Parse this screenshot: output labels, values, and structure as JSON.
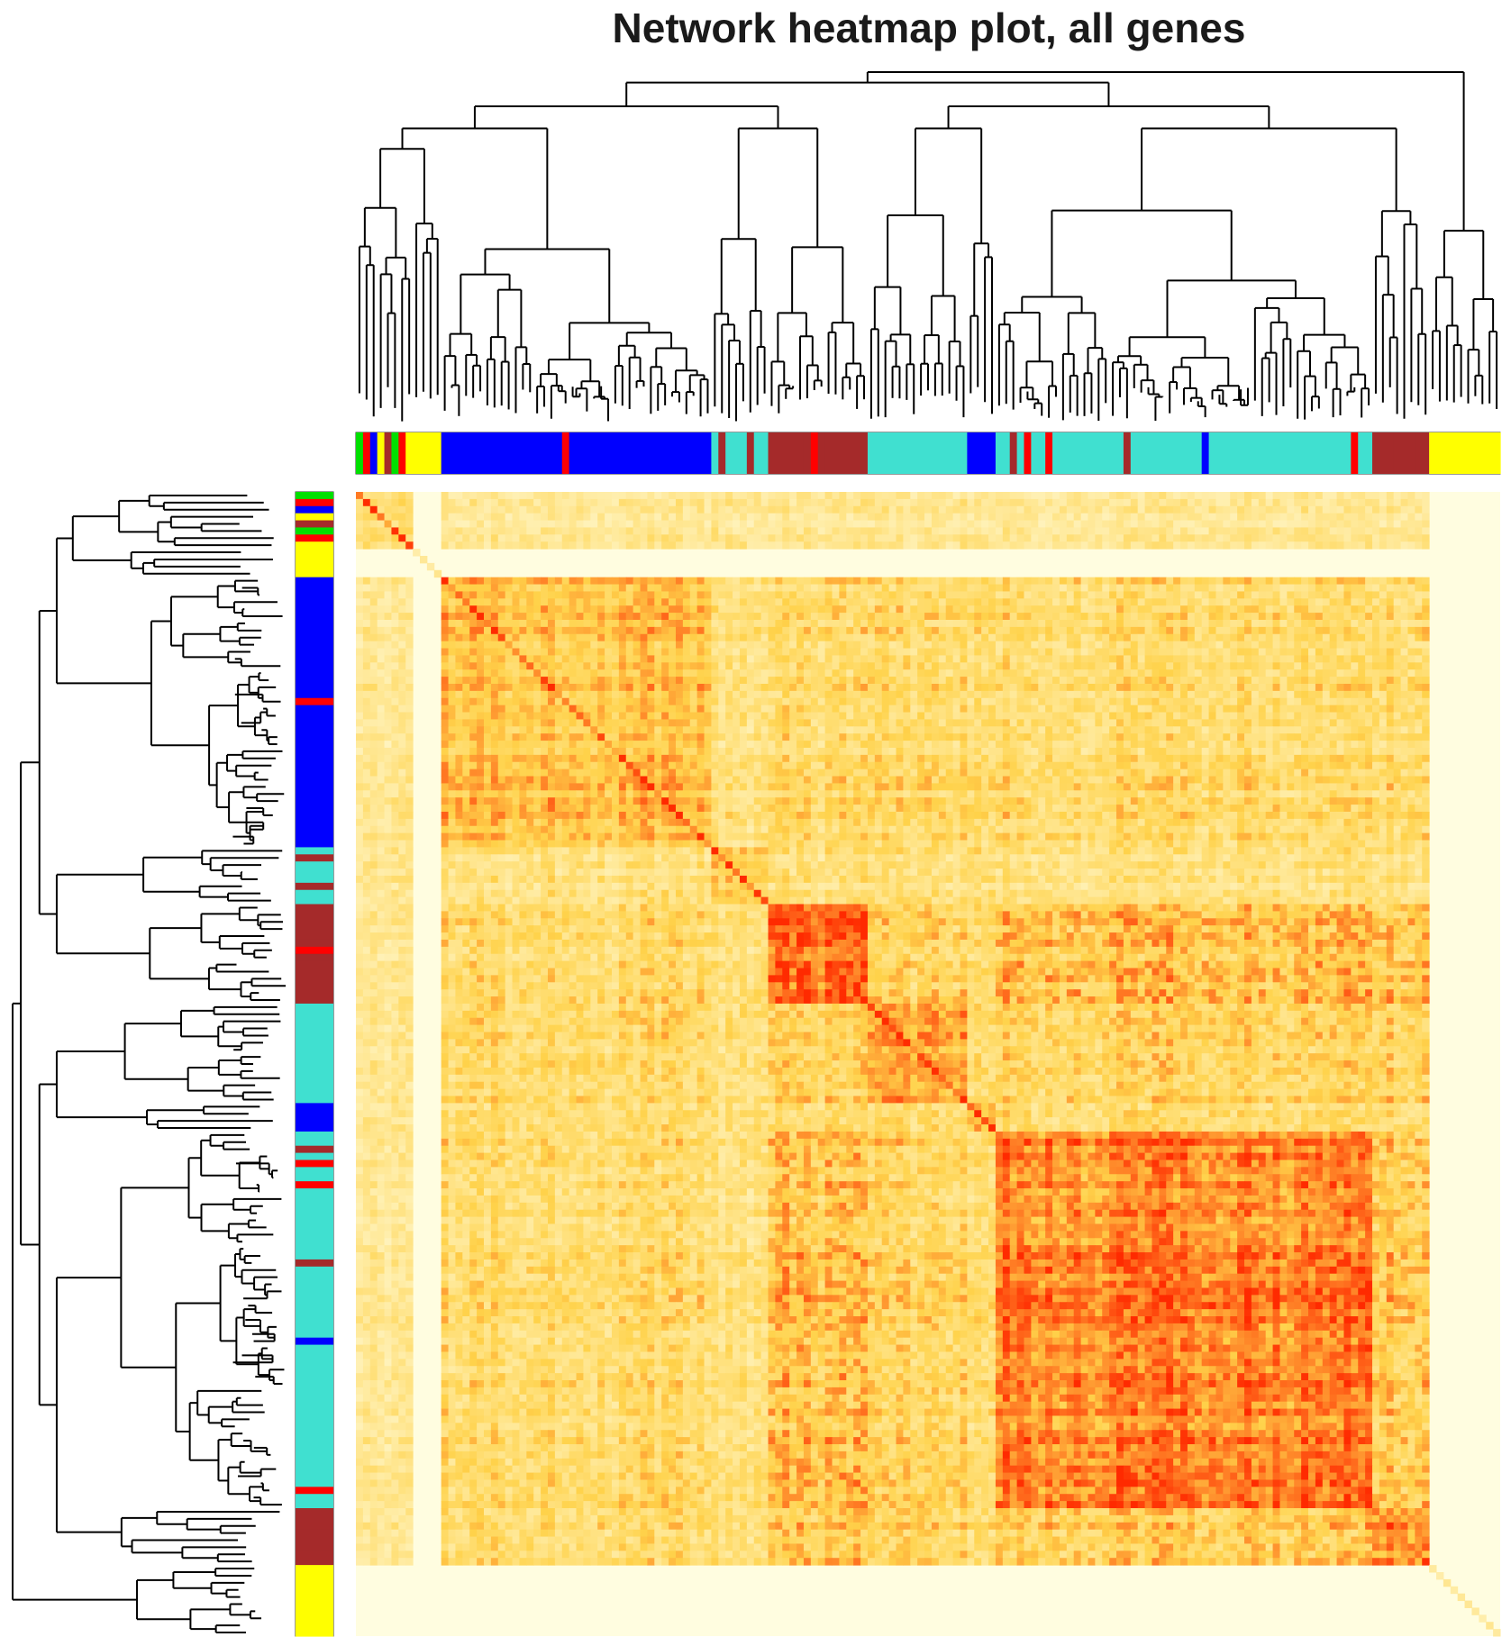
{
  "chart_data": {
    "type": "heatmap",
    "title": "Network heatmap plot, all genes",
    "xlabel": "",
    "ylabel": "",
    "legend": "none",
    "grid": false,
    "color_scale": {
      "low": "#fffde0",
      "mid": "#ffd24a",
      "high": "#ff2a00"
    },
    "module_colors": {
      "turquoise": "#40e0d0",
      "blue": "#0000ff",
      "brown": "#a52a2a",
      "yellow": "#ffff00",
      "green": "#00e000",
      "red": "#ff0000"
    },
    "modules": [
      {
        "name": "mixed",
        "size": 4,
        "tonality": 0.35
      },
      {
        "name": "yellow",
        "size": 2,
        "tonality": 0.15
      },
      {
        "name": "blue",
        "size": 19,
        "tonality": 0.55
      },
      {
        "name": "turquoise",
        "size": 4,
        "tonality": 0.45
      },
      {
        "name": "brown",
        "size": 7,
        "tonality": 0.8
      },
      {
        "name": "turquoise",
        "size": 7,
        "tonality": 0.6
      },
      {
        "name": "blue",
        "size": 2,
        "tonality": 0.5
      },
      {
        "name": "turquoise",
        "size": 27,
        "tonality": 0.75
      },
      {
        "name": "brown",
        "size": 4,
        "tonality": 0.7
      },
      {
        "name": "yellow",
        "size": 5,
        "tonality": 0.15
      }
    ]
  }
}
